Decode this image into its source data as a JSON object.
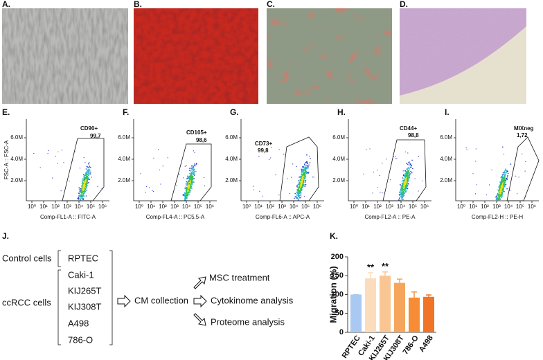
{
  "panel_labels": [
    "A.",
    "B.",
    "C.",
    "D.",
    "E.",
    "F.",
    "G.",
    "H.",
    "I.",
    "J.",
    "K."
  ],
  "flow_plots": {
    "y_label": "FSC-A :: FSC-A",
    "x_ticks": [
      "10⁰",
      "10¹",
      "10²",
      "10³",
      "10⁴",
      "10⁵",
      "10⁶"
    ],
    "y_ticks": [
      "2.0M",
      "4.0M",
      "6.0M"
    ],
    "plots": [
      {
        "x_label": "Comp-FL1-A :: FITC-A",
        "gate": "CD90+",
        "percent": "99,7"
      },
      {
        "x_label": "Comp-FL4-A :: PC5.5-A",
        "gate": "CD105+",
        "percent": "98,6"
      },
      {
        "x_label": "Comp-FL6-A :: APC-A",
        "gate": "CD73+",
        "percent": "99,8"
      },
      {
        "x_label": "Comp-FL2-A :: PE-A",
        "gate": "CD44+",
        "percent": "98,8"
      },
      {
        "x_label": "Comp-FL2-H :: PE-H",
        "gate": "MIXneg",
        "percent": "1,72"
      }
    ]
  },
  "diagram": {
    "control_label": "Control cells",
    "control_cells": [
      "RPTEC"
    ],
    "ccrcc_label": "ccRCC cells",
    "ccrcc_cells": [
      "Caki-1",
      "KIJ265T",
      "KIJ308T",
      "A498",
      "786-O"
    ],
    "step": "CM collection",
    "outputs": [
      "MSC treatment",
      "Cytokinome analysis",
      "Proteome analysis"
    ]
  },
  "chart_data": {
    "type": "bar",
    "y_label": "Migration (%)",
    "categories": [
      "RPTEC",
      "Caki-1",
      "KIJ265T",
      "KIJ308T",
      "786-O",
      "A498"
    ],
    "values": [
      100,
      143,
      150,
      131,
      92,
      94
    ],
    "errors": [
      0,
      15,
      10,
      10,
      15,
      5
    ],
    "colors": [
      "#a9c9f2",
      "#fbdcbc",
      "#f9c693",
      "#f5a65c",
      "#f68c35",
      "#f07326"
    ],
    "ylim": [
      0,
      200
    ],
    "yticks": [
      0,
      50,
      100,
      150,
      200
    ],
    "annotations": [
      {
        "text": "**",
        "category": "Caki-1"
      },
      {
        "text": "**",
        "category": "KIJ265T"
      }
    ]
  }
}
